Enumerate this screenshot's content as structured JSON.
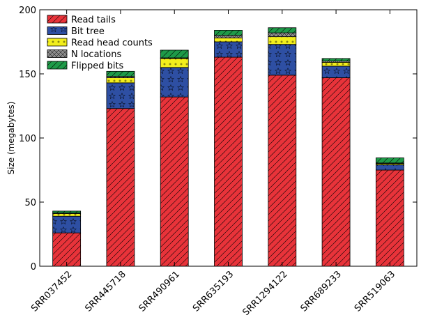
{
  "chart_data": {
    "type": "bar",
    "stacked": true,
    "categories": [
      "SRR037452",
      "SRR445718",
      "SRR490961",
      "SRR635193",
      "SRR1294122",
      "SRR689233",
      "SRR519063"
    ],
    "series": [
      {
        "name": "Read tails",
        "color": "#e8333a",
        "pattern": "diagonal-hatch",
        "values": [
          26,
          123,
          132,
          163,
          149,
          147,
          75
        ]
      },
      {
        "name": "Bit tree",
        "color": "#2e4fa3",
        "pattern": "stars",
        "values": [
          13,
          20,
          23,
          12,
          24,
          9,
          4
        ]
      },
      {
        "name": "Read head counts",
        "color": "#f2ee1c",
        "pattern": "dots",
        "values": [
          2,
          4,
          7,
          3,
          6,
          3,
          1
        ]
      },
      {
        "name": "N locations",
        "color": "#8c8c8c",
        "pattern": "cross-hatch",
        "values": [
          0.5,
          1,
          0.5,
          2,
          3,
          1,
          0.5
        ]
      },
      {
        "name": "Flipped bits",
        "color": "#1e9a48",
        "pattern": "diagonal-hatch",
        "values": [
          1.5,
          4,
          6,
          4,
          4,
          2,
          4
        ]
      }
    ],
    "ylabel": "Size (megabytes)",
    "xlabel": "",
    "ylim": [
      0,
      200
    ],
    "yticks": [
      0,
      50,
      100,
      150,
      200
    ],
    "grid": false,
    "legend_position": "top-left"
  }
}
